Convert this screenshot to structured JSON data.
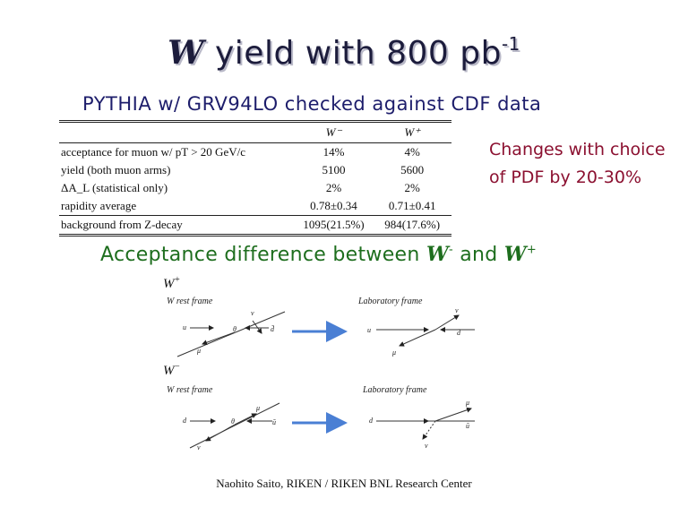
{
  "title": {
    "main": "yield with 800 pb",
    "symbol": "W",
    "superscript": "-1"
  },
  "subtitle": "PYTHIA w/ GRV94LO checked against CDF data",
  "table": {
    "headers": [
      "W⁻",
      "W⁺"
    ],
    "rows": [
      {
        "label": "acceptance for muon w/ pT > 20 GeV/c",
        "w_minus": "14%",
        "w_plus": "4%"
      },
      {
        "label": "yield (both muon arms)",
        "w_minus": "5100",
        "w_plus": "5600"
      },
      {
        "label": "ΔA_L (statistical only)",
        "w_minus": "2%",
        "w_plus": "2%"
      },
      {
        "label": "rapidity average",
        "w_minus": "0.78±0.34",
        "w_plus": "0.71±0.41"
      },
      {
        "label": "background from Z-decay",
        "w_minus": "1095(21.5%)",
        "w_plus": "984(17.6%)"
      }
    ]
  },
  "side_note": "Changes with choice of PDF by 20-30%",
  "acceptance_heading": {
    "text": "Acceptance difference between",
    "w_minus": "W",
    "minus": "-",
    "and": "and",
    "w_plus": "W",
    "plus": "+"
  },
  "diagrams": {
    "w_plus": {
      "symbol": "W",
      "charge": "+",
      "rest_frame": "W rest frame",
      "lab_frame": "Laboratory frame"
    },
    "w_minus": {
      "symbol": "W",
      "charge": "−",
      "rest_frame": "W rest frame",
      "lab_frame": "Laboratory frame"
    },
    "glyphs": {
      "mu": "μ",
      "nu": "ν",
      "theta": "θ",
      "u": "u",
      "d": "d",
      "ubar": "ū",
      "dbar": "d̄"
    }
  },
  "colors": {
    "title": "#1c1c3c",
    "subtitle": "#1d1d6b",
    "side_note": "#8b1030",
    "heading": "#1e6e1e",
    "arrow": "#4a7fd4"
  },
  "footer": "Naohito Saito, RIKEN / RIKEN BNL Research Center"
}
